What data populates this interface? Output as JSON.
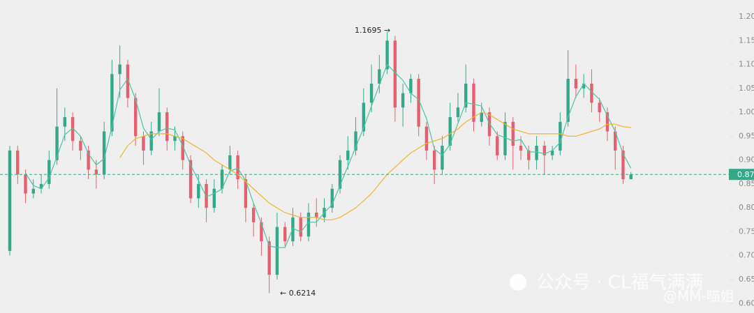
{
  "chart_data": {
    "type": "candlestick",
    "up_color": "#34a889",
    "down_color": "#e2606f",
    "ylim": [
      0.58,
      1.235
    ],
    "yticks": [
      {
        "value": 1.2,
        "label": "1.20"
      },
      1.15,
      {
        "value": 1.1,
        "label": "1.10"
      },
      1.05,
      {
        "value": 1,
        "label": "1.00"
      },
      0.95,
      {
        "value": 0.9,
        "label": "0.90"
      },
      0.85,
      {
        "value": 0.8,
        "label": "0.80"
      },
      0.75,
      {
        "value": 0.7,
        "label": "0.70"
      },
      0.65,
      {
        "value": 0.6,
        "label": "0.60"
      }
    ],
    "open": [
      0.71,
      0.92,
      0.87,
      0.83,
      0.84,
      0.85,
      0.9,
      0.97,
      0.99,
      0.94,
      0.92,
      0.88,
      0.87,
      0.96,
      1.08,
      1.1,
      1.03,
      0.95,
      0.92,
      0.96,
      1.0,
      0.94,
      0.95,
      0.9,
      0.82,
      0.85,
      0.8,
      0.84,
      0.88,
      0.91,
      0.86,
      0.8,
      0.77,
      0.73,
      0.66,
      0.76,
      0.73,
      0.78,
      0.74,
      0.79,
      0.78,
      0.8,
      0.84,
      0.9,
      0.92,
      0.96,
      1.02,
      1.06,
      1.09,
      1.15,
      1.01,
      1.04,
      1.07,
      0.97,
      0.92,
      0.88,
      0.93,
      0.99,
      1.01,
      1.06,
      0.98,
      1.0,
      0.95,
      0.91,
      0.98,
      0.93,
      0.92,
      0.9,
      0.93,
      0.91,
      0.92,
      0.98,
      1.07,
      1.05,
      1.06,
      1.02,
      1.0,
      0.96,
      0.92,
      0.86
    ],
    "high": [
      0.93,
      0.93,
      0.88,
      0.86,
      0.87,
      0.92,
      1.05,
      1.01,
      1.0,
      0.95,
      0.93,
      0.9,
      0.98,
      1.11,
      1.14,
      1.11,
      1.04,
      0.96,
      0.98,
      1.05,
      1.01,
      0.97,
      0.96,
      0.91,
      0.87,
      0.86,
      0.86,
      0.89,
      0.93,
      0.92,
      0.87,
      0.81,
      0.78,
      0.74,
      0.79,
      0.77,
      0.8,
      0.79,
      0.81,
      0.82,
      0.82,
      0.85,
      0.91,
      0.95,
      0.99,
      1.05,
      1.1,
      1.12,
      1.1695,
      1.16,
      1.06,
      1.08,
      1.08,
      0.98,
      0.93,
      0.95,
      1.02,
      1.04,
      1.1,
      1.07,
      1.02,
      1.01,
      0.96,
      1.0,
      0.99,
      0.95,
      0.93,
      0.95,
      0.94,
      0.93,
      1.0,
      1.13,
      1.1,
      1.08,
      1.09,
      1.03,
      1.01,
      0.97,
      0.93,
      0.875
    ],
    "low": [
      0.7,
      0.85,
      0.81,
      0.82,
      0.83,
      0.84,
      0.89,
      0.94,
      0.92,
      0.9,
      0.86,
      0.84,
      0.86,
      0.95,
      1.03,
      1.01,
      0.93,
      0.89,
      0.91,
      0.95,
      0.92,
      0.92,
      0.88,
      0.81,
      0.8,
      0.77,
      0.79,
      0.83,
      0.87,
      0.84,
      0.77,
      0.74,
      0.7,
      0.6214,
      0.65,
      0.72,
      0.72,
      0.73,
      0.73,
      0.76,
      0.77,
      0.79,
      0.83,
      0.88,
      0.91,
      0.95,
      1.0,
      1.04,
      1.08,
      0.98,
      0.97,
      1.02,
      0.95,
      0.9,
      0.85,
      0.87,
      0.92,
      0.98,
      1.0,
      0.96,
      0.97,
      0.93,
      0.9,
      0.9,
      0.88,
      0.9,
      0.88,
      0.88,
      0.87,
      0.9,
      0.91,
      0.97,
      1.03,
      1.03,
      1.0,
      0.98,
      0.94,
      0.88,
      0.85,
      0.86
    ],
    "close": [
      0.92,
      0.87,
      0.83,
      0.84,
      0.85,
      0.9,
      0.97,
      0.99,
      0.94,
      0.92,
      0.88,
      0.87,
      0.96,
      1.08,
      1.1,
      1.03,
      0.95,
      0.92,
      0.96,
      1.0,
      0.94,
      0.95,
      0.9,
      0.82,
      0.85,
      0.8,
      0.84,
      0.88,
      0.91,
      0.86,
      0.8,
      0.77,
      0.73,
      0.66,
      0.76,
      0.73,
      0.78,
      0.74,
      0.79,
      0.78,
      0.8,
      0.84,
      0.9,
      0.92,
      0.96,
      1.02,
      1.06,
      1.09,
      1.15,
      1.01,
      1.04,
      1.07,
      0.97,
      0.92,
      0.88,
      0.93,
      0.99,
      1.01,
      1.06,
      0.98,
      1.0,
      0.95,
      0.91,
      0.98,
      0.93,
      0.92,
      0.9,
      0.93,
      0.91,
      0.92,
      0.98,
      1.07,
      1.05,
      1.06,
      1.02,
      1.0,
      0.96,
      0.92,
      0.86,
      0.87
    ],
    "series": [
      {
        "color": "#4cc4a6",
        "values": [
          null,
          null,
          0.873,
          0.847,
          0.84,
          0.863,
          0.907,
          0.953,
          0.967,
          0.95,
          0.913,
          0.89,
          0.903,
          0.97,
          1.047,
          1.07,
          1.027,
          0.967,
          0.943,
          0.96,
          0.967,
          0.963,
          0.93,
          0.89,
          0.857,
          0.823,
          0.83,
          0.84,
          0.877,
          0.883,
          0.857,
          0.81,
          0.767,
          0.72,
          0.717,
          0.717,
          0.757,
          0.75,
          0.77,
          0.77,
          0.79,
          0.807,
          0.847,
          0.887,
          0.927,
          0.967,
          1.013,
          1.057,
          1.1,
          1.083,
          1.067,
          1.04,
          1.027,
          0.987,
          0.923,
          0.91,
          0.933,
          0.977,
          1.02,
          1.017,
          1.013,
          0.977,
          0.953,
          0.947,
          0.94,
          0.943,
          0.917,
          0.917,
          0.913,
          0.92,
          0.937,
          0.99,
          1.033,
          1.06,
          1.043,
          1.027,
          0.993,
          0.96,
          0.913,
          0.883
        ]
      },
      {
        "color": "#f0b32e",
        "values": [
          null,
          null,
          null,
          null,
          null,
          null,
          null,
          null,
          null,
          null,
          null,
          null,
          null,
          null,
          0.905,
          0.93,
          0.945,
          0.95,
          0.955,
          0.955,
          0.955,
          0.95,
          0.945,
          0.935,
          0.925,
          0.915,
          0.9,
          0.89,
          0.88,
          0.87,
          0.855,
          0.84,
          0.825,
          0.81,
          0.8,
          0.79,
          0.785,
          0.78,
          0.78,
          0.78,
          0.775,
          0.775,
          0.78,
          0.79,
          0.8,
          0.815,
          0.83,
          0.85,
          0.87,
          0.885,
          0.9,
          0.915,
          0.925,
          0.935,
          0.94,
          0.945,
          0.955,
          0.965,
          0.98,
          0.99,
          1.0,
          0.995,
          0.985,
          0.975,
          0.965,
          0.96,
          0.955,
          0.955,
          0.955,
          0.955,
          0.955,
          0.95,
          0.95,
          0.955,
          0.96,
          0.965,
          0.975,
          0.975,
          0.97,
          0.968
        ]
      }
    ],
    "last_price": 0.87,
    "last_price_color": "#34a889",
    "annotations": [
      {
        "text": "1.1695 →"
      },
      {
        "text": "← 0.6214"
      }
    ],
    "watermark": [
      "公众号 · CL福气满满",
      "@MM-喵姐"
    ]
  }
}
